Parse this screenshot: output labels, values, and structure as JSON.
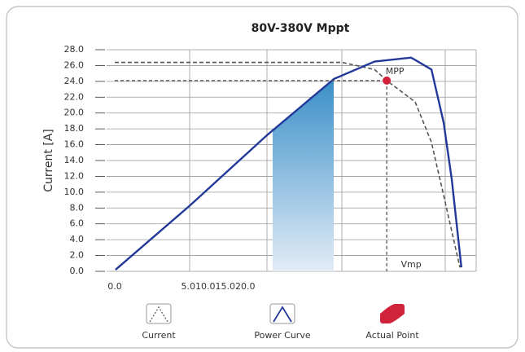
{
  "chart_data": {
    "type": "line",
    "title": "80V-380V Mppt",
    "y_label": "Current  [A]",
    "x_tick_labels": [
      "0.0",
      "5.010.015.020.0"
    ],
    "xlim": [
      0,
      100
    ],
    "ylim": [
      0,
      28
    ],
    "yticks": [
      {
        "value": 0,
        "label": "0.0"
      },
      {
        "value": 2,
        "label": "2.0"
      },
      {
        "value": 4,
        "label": "4.0"
      },
      {
        "value": 6,
        "label": "6.0"
      },
      {
        "value": 8,
        "label": "8.0"
      },
      {
        "value": 10,
        "label": "10.0"
      },
      {
        "value": 12,
        "label": "12.0"
      },
      {
        "value": 14,
        "label": "14.0"
      },
      {
        "value": 16,
        "label": "16.0"
      },
      {
        "value": 18,
        "label": "18.0"
      },
      {
        "value": 20,
        "label": "20.0"
      },
      {
        "value": 22,
        "label": "22.0"
      },
      {
        "value": 24,
        "label": "24.0"
      },
      {
        "value": 26,
        "label": "26.0"
      },
      {
        "value": 28,
        "label": "28.0"
      }
    ],
    "grid": true,
    "series": [
      {
        "name": "Current",
        "color": "#555555",
        "style": "dashed",
        "x": [
          2.2,
          63.7,
          72.5,
          75.8,
          83.5,
          87.9,
          91.2,
          95.6
        ],
        "values": [
          26.4,
          26.4,
          25.5,
          24.1,
          21.4,
          16.3,
          9.6,
          0.5
        ]
      },
      {
        "name": "Power Curve",
        "color": "#23399a",
        "style": "solid",
        "x": [
          2.4,
          22.5,
          43.4,
          61.5,
          72.5,
          82.4,
          87.9,
          91.2,
          93.4,
          96
        ],
        "values": [
          0.2,
          8.3,
          17.2,
          24.3,
          26.5,
          27.0,
          25.5,
          18.8,
          11.6,
          0.5
        ]
      },
      {
        "name": "Actual Point",
        "color": "#d0223a",
        "style": "point",
        "x": [
          75.8
        ],
        "values": [
          24.1
        ]
      }
    ],
    "annotations": [
      "MPP",
      "Vmp"
    ]
  }
}
